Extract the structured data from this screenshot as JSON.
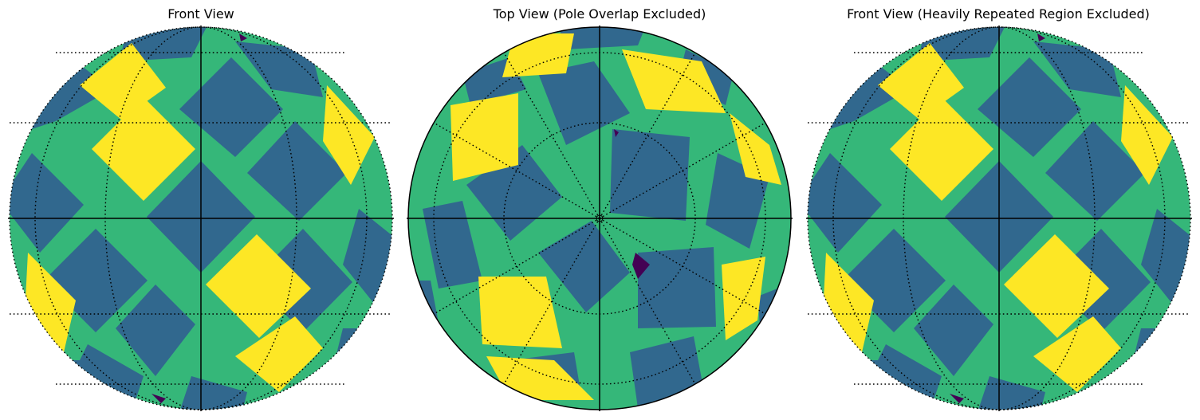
{
  "chart_data": [
    {
      "type": "heatmap",
      "title": "Front View",
      "projection": "orthographic",
      "view": "front",
      "colormap": [
        "#440154",
        "#31688e",
        "#35b779",
        "#fde725"
      ],
      "grid": true
    },
    {
      "type": "heatmap",
      "title": "Top View (Pole Overlap Excluded)",
      "projection": "orthographic",
      "view": "top",
      "colormap": [
        "#440154",
        "#31688e",
        "#35b779",
        "#fde725"
      ],
      "grid": true
    },
    {
      "type": "heatmap",
      "title": "Front View (Heavily Repeated Region Excluded)",
      "projection": "orthographic",
      "view": "front",
      "colormap": [
        "#440154",
        "#31688e",
        "#35b779",
        "#fde725"
      ],
      "grid": true
    }
  ]
}
